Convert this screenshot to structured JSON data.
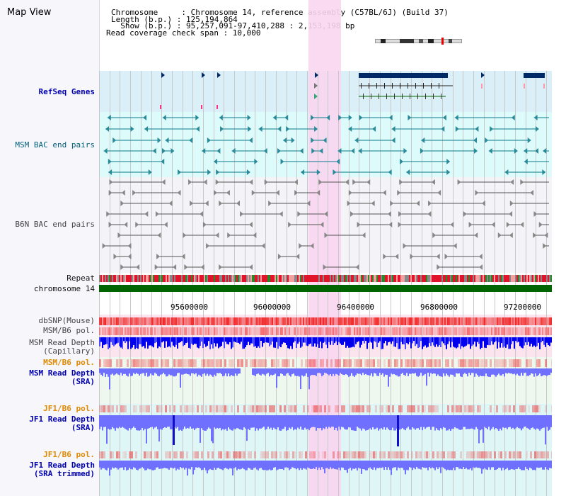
{
  "app": {
    "title": "Map View"
  },
  "header": {
    "line1": "Chromosome     : Chromosome 14, reference assembly (C57BL/6J) (Build 37)",
    "line2": "Length (b.p.) : 125,194,864",
    "line3": "  Show (b.p.) : 95,257,091-97,410,288 : 2,153,198 bp",
    "line4": "Read coverage check span : 10,000"
  },
  "tracks": [
    {
      "key": "refseq",
      "label": "RefSeq Genes"
    },
    {
      "key": "msm_bac",
      "label": "MSM BAC end pairs"
    },
    {
      "key": "b6n_bac",
      "label": "B6N BAC end pairs"
    },
    {
      "key": "repeat",
      "label": "Repeat"
    },
    {
      "key": "chromosome",
      "label": "chromosome 14"
    },
    {
      "key": "dbsnp",
      "label": "dbSNP(Mouse)"
    },
    {
      "key": "msm_pol1",
      "label": "MSM/B6 pol."
    },
    {
      "key": "msm_depth_cap",
      "label": "MSM Read Depth\n(Capillary)"
    },
    {
      "key": "msm_pol2",
      "label": "MSM/B6 pol."
    },
    {
      "key": "msm_depth_sra",
      "label": "MSM Read Depth\n(SRA)"
    },
    {
      "key": "jf1_pol1",
      "label": "JF1/B6 pol."
    },
    {
      "key": "jf1_depth_sra",
      "label": "JF1 Read Depth\n(SRA)"
    },
    {
      "key": "jf1_pol2",
      "label": "JF1/B6 pol."
    },
    {
      "key": "jf1_depth_trim",
      "label": "JF1 Read Depth\n(SRA trimmed)"
    }
  ],
  "axis": {
    "ticks": [
      "95600000",
      "96000000",
      "96400000",
      "96800000",
      "97200000"
    ]
  },
  "colors": {
    "highlight": "#f8d6f0",
    "chromosome": "#006400",
    "depth": "#7070ff",
    "depth_dark": "#0000ee",
    "snp": "#ff3030"
  }
}
